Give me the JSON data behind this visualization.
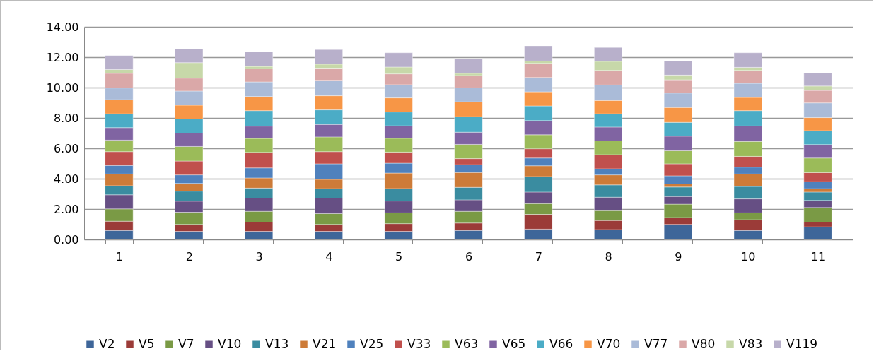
{
  "chart_data": {
    "type": "bar",
    "stacked": true,
    "categories": [
      "1",
      "2",
      "3",
      "4",
      "5",
      "6",
      "7",
      "8",
      "9",
      "10",
      "11"
    ],
    "series": [
      {
        "name": "V2",
        "color": "#3e6699",
        "values": [
          0.59,
          0.53,
          0.53,
          0.53,
          0.53,
          0.59,
          0.68,
          0.65,
          0.99,
          0.59,
          0.83
        ]
      },
      {
        "name": "V5",
        "color": "#9b3b38",
        "values": [
          0.61,
          0.46,
          0.61,
          0.46,
          0.51,
          0.49,
          0.97,
          0.6,
          0.45,
          0.71,
          0.31
        ]
      },
      {
        "name": "V7",
        "color": "#7a9a45",
        "values": [
          0.81,
          0.8,
          0.71,
          0.71,
          0.71,
          0.77,
          0.71,
          0.65,
          0.88,
          0.45,
          0.96
        ]
      },
      {
        "name": "V10",
        "color": "#664f84",
        "values": [
          0.93,
          0.73,
          0.87,
          1.02,
          0.78,
          0.76,
          0.76,
          0.88,
          0.51,
          0.92,
          0.47
        ]
      },
      {
        "name": "V13",
        "color": "#3a8ca0",
        "values": [
          0.6,
          0.66,
          0.66,
          0.62,
          0.82,
          0.82,
          1.02,
          0.81,
          0.62,
          0.82,
          0.55
        ]
      },
      {
        "name": "V21",
        "color": "#cd7b38",
        "values": [
          0.77,
          0.51,
          0.67,
          0.62,
          1.02,
          0.98,
          0.71,
          0.66,
          0.2,
          0.82,
          0.22
        ]
      },
      {
        "name": "V25",
        "color": "#4f81bd",
        "values": [
          0.56,
          0.56,
          0.66,
          1.02,
          0.65,
          0.51,
          0.51,
          0.4,
          0.54,
          0.45,
          0.46
        ]
      },
      {
        "name": "V33",
        "color": "#c0504d",
        "values": [
          0.91,
          0.91,
          1.02,
          0.8,
          0.73,
          0.4,
          0.61,
          0.93,
          0.79,
          0.71,
          0.6
        ]
      },
      {
        "name": "V63",
        "color": "#9bbb59",
        "values": [
          0.76,
          0.96,
          0.92,
          0.97,
          0.91,
          0.94,
          0.92,
          0.91,
          0.86,
          0.98,
          0.96
        ]
      },
      {
        "name": "V65",
        "color": "#8064a2",
        "values": [
          0.82,
          0.88,
          0.81,
          0.82,
          0.82,
          0.8,
          0.93,
          0.91,
          0.96,
          1.02,
          0.88
        ]
      },
      {
        "name": "V66",
        "color": "#4bacc6",
        "values": [
          0.91,
          0.93,
          1.02,
          0.96,
          0.91,
          1.02,
          0.97,
          0.87,
          0.91,
          1.01,
          0.92
        ]
      },
      {
        "name": "V70",
        "color": "#f79646",
        "values": [
          0.93,
          0.91,
          0.93,
          0.93,
          0.93,
          0.98,
          0.93,
          0.88,
          0.98,
          0.87,
          0.86
        ]
      },
      {
        "name": "V77",
        "color": "#aabbd8",
        "values": [
          0.77,
          0.93,
          0.96,
          1.02,
          0.87,
          0.92,
          0.94,
          1.02,
          0.95,
          0.93,
          0.97
        ]
      },
      {
        "name": "V80",
        "color": "#daa8a8",
        "values": [
          0.97,
          0.85,
          0.87,
          0.8,
          0.71,
          0.81,
          0.93,
          0.96,
          0.87,
          0.85,
          0.82
        ]
      },
      {
        "name": "V83",
        "color": "#c7d8a9",
        "values": [
          0.25,
          1.02,
          0.15,
          0.26,
          0.45,
          0.15,
          0.16,
          0.6,
          0.31,
          0.2,
          0.29
        ]
      },
      {
        "name": "V119",
        "color": "#b8b0cb",
        "values": [
          0.91,
          0.91,
          0.97,
          0.96,
          0.94,
          0.95,
          1.0,
          0.91,
          0.93,
          0.96,
          0.87
        ]
      }
    ],
    "ylim": [
      0,
      14
    ],
    "yticks": [
      {
        "value": 0,
        "label": "0.00"
      },
      {
        "value": 2,
        "label": "2.00"
      },
      {
        "value": 4,
        "label": "4.00"
      },
      {
        "value": 6,
        "label": "6.00"
      },
      {
        "value": 8,
        "label": "8.00"
      },
      {
        "value": 10,
        "label": "10.00"
      },
      {
        "value": 12,
        "label": "12.00"
      },
      {
        "value": 14,
        "label": "14.00"
      }
    ],
    "grid": "y",
    "legend": "bottom"
  }
}
